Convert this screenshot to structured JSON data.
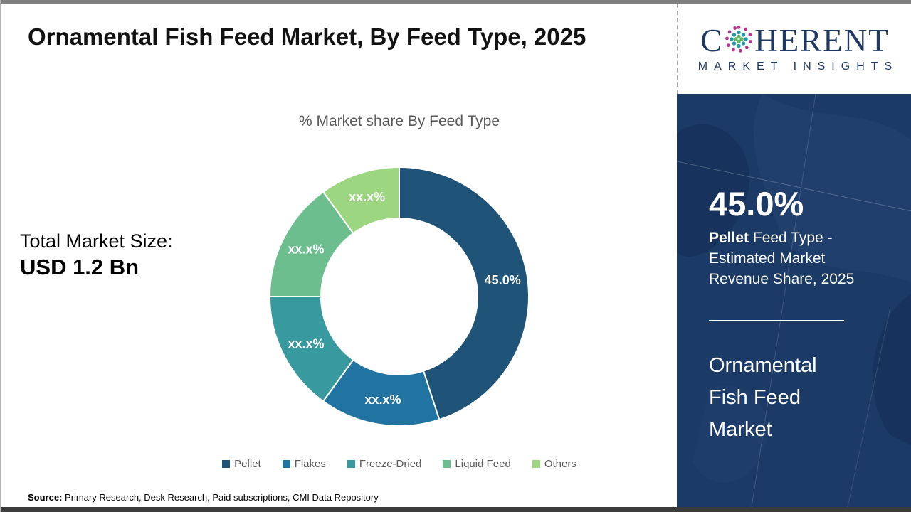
{
  "page": {
    "title": "Ornamental Fish Feed Market, By Feed Type, 2025",
    "subtitle": "% Market share By Feed Type",
    "total_market_label": "Total Market Size:",
    "total_market_value": "USD 1.2 Bn",
    "source_label": "Source:",
    "source_text": " Primary Research, Desk Research, Paid subscriptions, CMI Data Repository"
  },
  "chart_data": {
    "type": "pie",
    "donut": true,
    "title": "% Market share By Feed Type",
    "categories": [
      "Pellet",
      "Flakes",
      "Freeze-Dried",
      "Liquid Feed",
      "Others"
    ],
    "values": [
      45.0,
      15.0,
      15.0,
      15.0,
      10.0
    ],
    "labels": [
      "45.0%",
      "xx.x%",
      "xx.x%",
      "xx.x%",
      "xx.x%"
    ],
    "colors": [
      "#1F5378",
      "#2173A1",
      "#38999E",
      "#6CBE8E",
      "#9CD681"
    ],
    "legend_position": "bottom",
    "start_angle_deg": 0,
    "direction": "clockwise"
  },
  "side_panel": {
    "stat_value": "45.0%",
    "stat_label_bold": "Pellet",
    "stat_label_rest": " Feed Type - Estimated Market Revenue Share, 2025",
    "panel_title": "Ornamental Fish Feed Market",
    "background_color": "#1C3A66"
  },
  "logo": {
    "brand_part1": "C",
    "brand_part2": "HERENT",
    "brand_sub": "MARKET INSIGHTS",
    "color": "#1F3864"
  }
}
